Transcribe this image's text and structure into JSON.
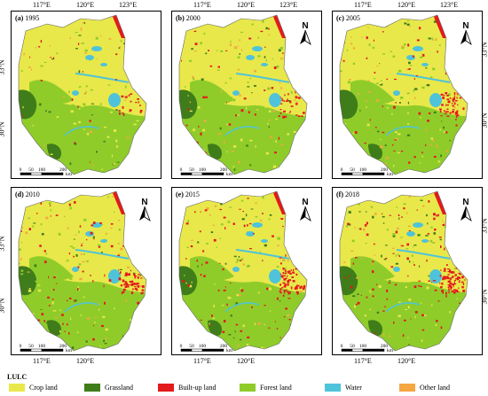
{
  "top_lon_labels": [
    "117°E",
    "120°E",
    "123°E"
  ],
  "bottom_lon_labels": [
    "117°E",
    "120°E"
  ],
  "lat_labels": [
    "33°N",
    "30°N"
  ],
  "panels": [
    {
      "letter": "(a)",
      "year": "1995"
    },
    {
      "letter": "(b)",
      "year": "2000"
    },
    {
      "letter": "(c)",
      "year": "2005"
    },
    {
      "letter": "(d)",
      "year": "2010"
    },
    {
      "letter": "(e)",
      "year": "2015"
    },
    {
      "letter": "(f)",
      "year": "2018"
    }
  ],
  "scale_ticks": [
    "0",
    "50",
    "100",
    "200"
  ],
  "scale_unit": "km",
  "north_label": "N",
  "legend": {
    "title": "LULC",
    "items": [
      {
        "label": "Crop land",
        "color": "#e8e84a"
      },
      {
        "label": "Grassland",
        "color": "#3f7d1a"
      },
      {
        "label": "Built-up land",
        "color": "#e31a1c"
      },
      {
        "label": "Forest land",
        "color": "#8fcc2a"
      },
      {
        "label": "Water",
        "color": "#4fc3d9"
      },
      {
        "label": "Other land",
        "color": "#f5a742"
      }
    ]
  },
  "colors": {
    "crop": "#e8e84a",
    "grass": "#3f7d1a",
    "built": "#e31a1c",
    "forest": "#8fcc2a",
    "water": "#4fc3d9",
    "other": "#f5a742"
  }
}
